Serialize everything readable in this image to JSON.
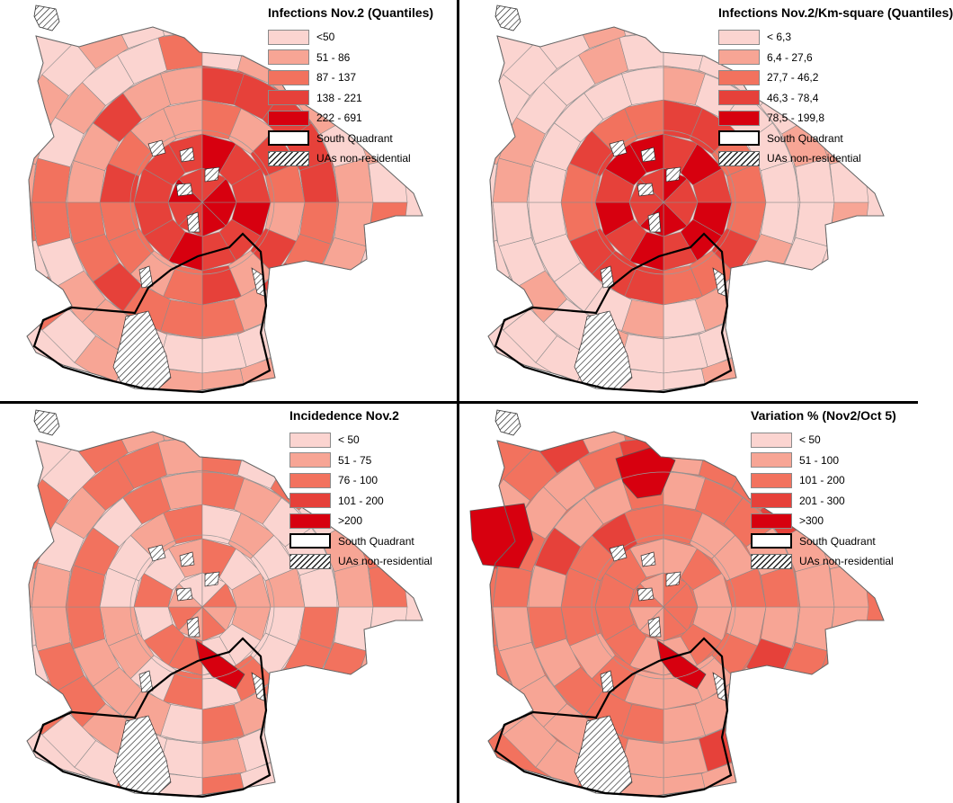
{
  "panels": [
    {
      "title": "Infections Nov.2 (Quantiles)",
      "classes": [
        "<50",
        "51 - 86",
        "87 - 137",
        "138 - 221",
        "222 - 691"
      ],
      "extra": [
        "South Quadrant",
        "UAs non-residential"
      ],
      "colors": [
        "#fbd4d0",
        "#f7a595",
        "#f2725e",
        "#e6413a",
        "#d7000f"
      ]
    },
    {
      "title": "Infections Nov.2/Km-square (Quantiles)",
      "classes": [
        "< 6,3",
        "6,4 - 27,6",
        "27,7 - 46,2",
        "46,3 - 78,4",
        "78,5 - 199,8"
      ],
      "extra": [
        "South Quadrant",
        "UAs non-residential"
      ],
      "colors": [
        "#fbd4d0",
        "#f7a595",
        "#f2725e",
        "#e6413a",
        "#d7000f"
      ]
    },
    {
      "title": "Incidedence Nov.2",
      "classes": [
        "< 50",
        "51 - 75",
        "76 - 100",
        "101 - 200",
        ">200"
      ],
      "extra": [
        "South Quadrant",
        "UAs non-residential"
      ],
      "colors": [
        "#fbd4d0",
        "#f7a595",
        "#f2725e",
        "#e6413a",
        "#d7000f"
      ]
    },
    {
      "title": "Variation % (Nov2/Oct 5)",
      "classes": [
        "< 50",
        "51 - 100",
        "101 - 200",
        "201 - 300",
        ">300"
      ],
      "extra": [
        "South Quadrant",
        "UAs non-residential"
      ],
      "colors": [
        "#fbd4d0",
        "#f7a595",
        "#f2725e",
        "#e6413a",
        "#d7000f"
      ]
    }
  ]
}
